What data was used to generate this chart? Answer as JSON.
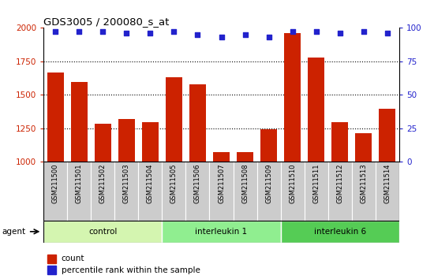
{
  "title": "GDS3005 / 200080_s_at",
  "samples": [
    "GSM211500",
    "GSM211501",
    "GSM211502",
    "GSM211503",
    "GSM211504",
    "GSM211505",
    "GSM211506",
    "GSM211507",
    "GSM211508",
    "GSM211509",
    "GSM211510",
    "GSM211511",
    "GSM211512",
    "GSM211513",
    "GSM211514"
  ],
  "counts": [
    1665,
    1595,
    1285,
    1320,
    1295,
    1630,
    1580,
    1075,
    1070,
    1245,
    1960,
    1780,
    1295,
    1215,
    1395
  ],
  "percentile": [
    97,
    97,
    97,
    96,
    96,
    97,
    95,
    93,
    95,
    93,
    97,
    97,
    96,
    97,
    96
  ],
  "groups": [
    {
      "label": "control",
      "start": 0,
      "end": 5,
      "color": "#d4f5b0"
    },
    {
      "label": "interleukin 1",
      "start": 5,
      "end": 10,
      "color": "#90ee90"
    },
    {
      "label": "interleukin 6",
      "start": 10,
      "end": 15,
      "color": "#55cc55"
    }
  ],
  "bar_color": "#cc2200",
  "dot_color": "#2222cc",
  "ylim_left": [
    1000,
    2000
  ],
  "ylim_right": [
    0,
    100
  ],
  "yticks_left": [
    1000,
    1250,
    1500,
    1750,
    2000
  ],
  "yticks_right": [
    0,
    25,
    50,
    75,
    100
  ],
  "left_tick_color": "#cc2200",
  "right_tick_color": "#2222cc",
  "agent_label": "agent",
  "legend_count": "count",
  "legend_percentile": "percentile rank within the sample",
  "sample_bg_color": "#cccccc",
  "plot_bg": "#ffffff",
  "title_color": "#000000",
  "grid_yticks": [
    1250,
    1500,
    1750
  ]
}
